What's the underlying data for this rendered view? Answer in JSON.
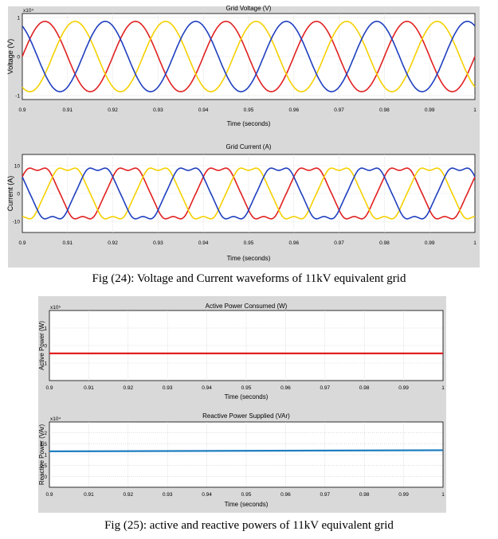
{
  "figure24": {
    "caption": "Fig (24): Voltage and Current waveforms of 11kV equivalent grid"
  },
  "figure25": {
    "caption": "Fig (25): active and reactive powers of 11kV equivalent grid"
  },
  "colors": {
    "phase_a": "#e02020",
    "phase_b": "#f5d000",
    "phase_c": "#1f3fbf",
    "active_power": "#e02020",
    "reactive_power": "#1f7fc0"
  },
  "chart_data": [
    {
      "id": "grid-voltage",
      "type": "line",
      "title": "Grid Voltage (V)",
      "ylabel": "Voltage (V)",
      "xlabel": "Time (seconds)",
      "y_exponent": "x10⁴",
      "xlim": [
        0.9,
        1.0
      ],
      "ylim": [
        -1.1,
        1.1
      ],
      "x_ticks": [
        "0.9",
        "0.91",
        "0.92",
        "0.93",
        "0.94",
        "0.95",
        "0.96",
        "0.97",
        "0.98",
        "0.99",
        "1"
      ],
      "y_ticks": [
        "1",
        "0",
        "-1"
      ],
      "grid": true,
      "waveform": {
        "kind": "sine",
        "frequency_hz": 50,
        "amplitude": 0.9
      },
      "series": [
        {
          "color_key": "phase_a",
          "phase_deg": 0
        },
        {
          "color_key": "phase_b",
          "phase_deg": -120
        },
        {
          "color_key": "phase_c",
          "phase_deg": 120
        }
      ]
    },
    {
      "id": "grid-current",
      "type": "line",
      "title": "Grid Current (A)",
      "ylabel": "Current (A)",
      "xlabel": "Time (seconds)",
      "xlim": [
        0.9,
        1.0
      ],
      "ylim": [
        -14,
        14
      ],
      "x_ticks": [
        "0.9",
        "0.91",
        "0.92",
        "0.93",
        "0.94",
        "0.95",
        "0.96",
        "0.97",
        "0.98",
        "0.99",
        "1"
      ],
      "y_ticks": [
        "10",
        "0",
        "-10"
      ],
      "grid": true,
      "waveform": {
        "kind": "distorted-sine",
        "frequency_hz": 50,
        "amplitude": 10
      },
      "series": [
        {
          "color_key": "phase_a",
          "phase_deg": 30
        },
        {
          "color_key": "phase_b",
          "phase_deg": -90
        },
        {
          "color_key": "phase_c",
          "phase_deg": 150
        }
      ]
    },
    {
      "id": "active-power",
      "type": "line",
      "title": "Active Power Consumed (W)",
      "ylabel": "Active Power (W)",
      "xlabel": "Time (seconds)",
      "y_exponent": "x10⁵",
      "xlim": [
        0.9,
        1.0
      ],
      "ylim": [
        -2,
        2
      ],
      "x_ticks": [
        "0.9",
        "0.91",
        "0.92",
        "0.93",
        "0.94",
        "0.95",
        "0.96",
        "0.97",
        "0.98",
        "0.99",
        "1"
      ],
      "y_ticks": [
        "1",
        "0",
        "-1"
      ],
      "grid": true,
      "series": [
        {
          "color_key": "active_power",
          "x": [
            0.9,
            1.0
          ],
          "y": [
            -0.45,
            -0.45
          ]
        }
      ]
    },
    {
      "id": "reactive-power",
      "type": "line",
      "title": "Reactive Power Supplied (VAr)",
      "ylabel": "Reactive Power (VAr)",
      "xlabel": "Time (seconds)",
      "y_exponent": "x10⁴",
      "xlim": [
        0.9,
        1.0
      ],
      "ylim": [
        -0.5,
        2.5
      ],
      "x_ticks": [
        "0.9",
        "0.91",
        "0.92",
        "0.93",
        "0.94",
        "0.95",
        "0.96",
        "0.97",
        "0.98",
        "0.99",
        "1"
      ],
      "y_ticks": [
        "2",
        "1.5",
        "1",
        "0.5",
        "0"
      ],
      "grid": true,
      "series": [
        {
          "color_key": "reactive_power",
          "x": [
            0.9,
            1.0
          ],
          "y": [
            1.15,
            1.2
          ]
        }
      ]
    }
  ]
}
